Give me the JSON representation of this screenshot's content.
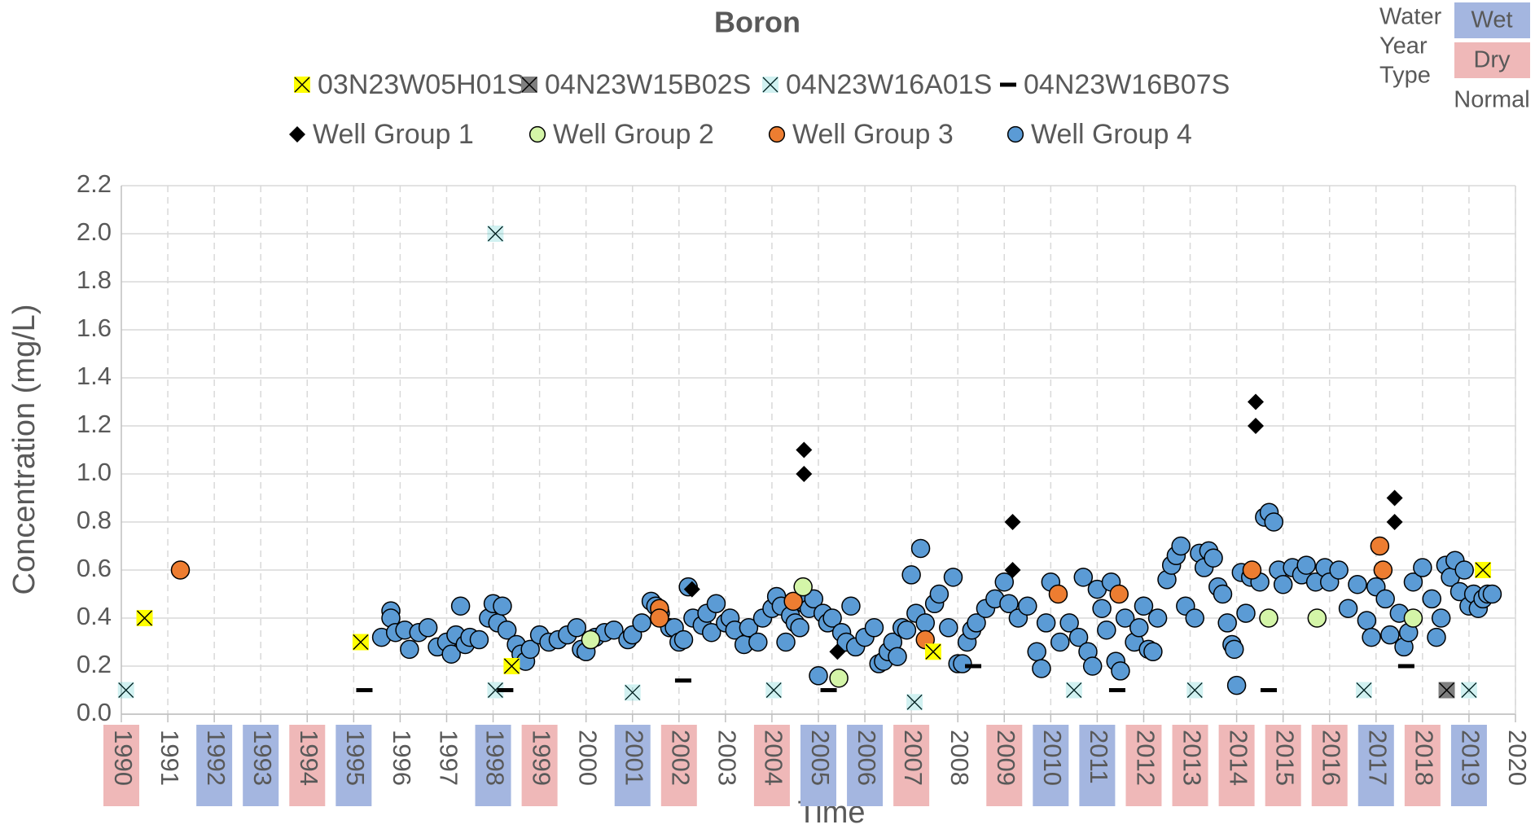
{
  "chart_data": {
    "type": "scatter",
    "title": "Boron",
    "xlabel": "Time",
    "ylabel": "Concentration (mg/L)",
    "xlim": [
      1990,
      2020
    ],
    "xticks": [
      1990,
      1991,
      1992,
      1993,
      1994,
      1995,
      1996,
      1997,
      1998,
      1999,
      2000,
      2001,
      2002,
      2003,
      2004,
      2005,
      2006,
      2007,
      2008,
      2009,
      2010,
      2011,
      2012,
      2013,
      2014,
      2015,
      2016,
      2017,
      2018,
      2019,
      2020
    ],
    "ylim": [
      0,
      2.2
    ],
    "yticks": [
      {
        "value": 0,
        "label": "0.0"
      },
      0.2,
      0.4,
      0.6,
      0.8,
      {
        "value": 1,
        "label": "1.0"
      },
      1.2,
      1.4,
      1.6,
      1.8,
      {
        "value": 2,
        "label": "2.0"
      },
      2.2
    ],
    "grid": true,
    "water_year_type": {
      "title": [
        "Water",
        "Year",
        "Type"
      ],
      "types": [
        {
          "label": "Wet",
          "color": "#a4b6e0",
          "years": [
            1992,
            1993,
            1995,
            1998,
            2001,
            2005,
            2006,
            2010,
            2011,
            2017,
            2019
          ]
        },
        {
          "label": "Dry",
          "color": "#efb8b8",
          "years": [
            1990,
            1994,
            1999,
            2002,
            2004,
            2007,
            2009,
            2012,
            2013,
            2014,
            2015,
            2016,
            2018
          ]
        },
        {
          "label": "Normal",
          "color": "none",
          "years": [
            1991,
            1996,
            1997,
            2000,
            2003,
            2008,
            2020
          ]
        }
      ]
    },
    "series": [
      {
        "name": "03N23W05H01S",
        "marker": "x-box",
        "color": "#ffff00",
        "x": [
          1990.5,
          1995.15,
          1998.4,
          2007.47,
          2019.3
        ],
        "values": [
          0.4,
          0.3,
          0.2,
          0.26,
          0.6
        ]
      },
      {
        "name": "04N23W15B02S",
        "marker": "x-box",
        "color": "#7f7f7f",
        "x": [
          2018.52
        ],
        "values": [
          0.1
        ]
      },
      {
        "name": "04N23W16A01S",
        "marker": "x",
        "color": "#00b0b0",
        "x": [
          1990.1,
          1998.05,
          1998.05,
          2001.0,
          2004.04,
          2007.07,
          2010.5,
          2013.1,
          2016.74,
          2019.0
        ],
        "values": [
          0.1,
          2.0,
          0.1,
          0.09,
          0.1,
          0.05,
          0.1,
          0.1,
          0.1,
          0.1
        ]
      },
      {
        "name": "04N23W16B07S",
        "marker": "dash",
        "color": "#000000",
        "x": [
          1995.23,
          1998.26,
          2002.09,
          2005.22,
          2008.33,
          2011.43,
          2014.69,
          2017.65
        ],
        "values": [
          0.1,
          0.1,
          0.14,
          0.1,
          0.2,
          0.1,
          0.1,
          0.2
        ]
      },
      {
        "name": "Well Group 1",
        "marker": "diamond",
        "color": "#000000",
        "x": [
          2002.28,
          2004.69,
          2004.69,
          2005.41,
          2009.18,
          2009.18,
          2014.41,
          2014.41,
          2017.4,
          2017.4
        ],
        "values": [
          0.52,
          1.1,
          1.0,
          0.26,
          0.8,
          0.6,
          1.3,
          1.2,
          0.9,
          0.8
        ]
      },
      {
        "name": "Well Group 2",
        "marker": "circle",
        "color": "#d4f5a8",
        "x": [
          2000.1,
          2004.67,
          2005.44,
          2014.69,
          2015.73,
          2017.8
        ],
        "values": [
          0.31,
          0.53,
          0.15,
          0.4,
          0.4,
          0.4
        ]
      },
      {
        "name": "Well Group 3",
        "marker": "circle",
        "color": "#ed7d31",
        "x": [
          1991.27,
          2001.58,
          2001.58,
          2004.46,
          2007.3,
          2010.16,
          2011.47,
          2014.33,
          2017.08,
          2017.15
        ],
        "values": [
          0.6,
          0.44,
          0.4,
          0.47,
          0.31,
          0.5,
          0.5,
          0.6,
          0.7,
          0.6
        ]
      },
      {
        "name": "Well Group 4",
        "marker": "circle",
        "color": "#5b9bd5",
        "x": [
          1995.6,
          1995.8,
          1995.8,
          1995.9,
          1996.1,
          1996.2,
          1996.4,
          1996.6,
          1996.8,
          1997.0,
          1997.1,
          1997.2,
          1997.3,
          1997.4,
          1997.5,
          1997.7,
          1997.9,
          1998.0,
          1998.1,
          1998.2,
          1998.3,
          1998.5,
          1998.6,
          1998.7,
          1998.8,
          1999.0,
          1999.2,
          1999.4,
          1999.6,
          1999.8,
          1999.9,
          2000.0,
          2000.2,
          2000.4,
          2000.6,
          2000.9,
          2001.0,
          2001.2,
          2001.4,
          2001.5,
          2001.6,
          2001.8,
          2001.9,
          2002.0,
          2002.1,
          2002.2,
          2002.3,
          2002.5,
          2002.6,
          2002.7,
          2002.8,
          2003.0,
          2003.1,
          2003.2,
          2003.4,
          2003.5,
          2003.7,
          2003.8,
          2004.0,
          2004.1,
          2004.2,
          2004.3,
          2004.4,
          2004.5,
          2004.6,
          2004.7,
          2004.8,
          2004.9,
          2005.0,
          2005.1,
          2005.2,
          2005.3,
          2005.5,
          2005.6,
          2005.7,
          2005.8,
          2006.0,
          2006.2,
          2006.3,
          2006.4,
          2006.5,
          2006.6,
          2006.7,
          2006.8,
          2006.9,
          2007.0,
          2007.1,
          2007.2,
          2007.3,
          2007.5,
          2007.6,
          2007.8,
          2007.9,
          2008.0,
          2008.1,
          2008.2,
          2008.3,
          2008.4,
          2008.6,
          2008.8,
          2009.0,
          2009.1,
          2009.3,
          2009.5,
          2009.7,
          2009.8,
          2009.9,
          2010.0,
          2010.2,
          2010.4,
          2010.6,
          2010.7,
          2010.8,
          2010.9,
          2011.0,
          2011.1,
          2011.2,
          2011.3,
          2011.4,
          2011.5,
          2011.6,
          2011.8,
          2011.9,
          2012.0,
          2012.1,
          2012.2,
          2012.3,
          2012.5,
          2012.6,
          2012.7,
          2012.8,
          2012.9,
          2013.1,
          2013.2,
          2013.3,
          2013.4,
          2013.5,
          2013.6,
          2013.7,
          2013.8,
          2013.9,
          2013.95,
          2014.0,
          2014.1,
          2014.2,
          2014.3,
          2014.5,
          2014.6,
          2014.7,
          2014.8,
          2014.9,
          2015.0,
          2015.2,
          2015.4,
          2015.5,
          2015.7,
          2015.9,
          2016.0,
          2016.2,
          2016.4,
          2016.6,
          2016.8,
          2016.9,
          2017.0,
          2017.2,
          2017.3,
          2017.5,
          2017.6,
          2017.7,
          2017.8,
          2018.0,
          2018.2,
          2018.3,
          2018.4,
          2018.5,
          2018.6,
          2018.7,
          2018.8,
          2018.9,
          2019.0,
          2019.1,
          2019.2,
          2019.3,
          2019.4,
          2019.5
        ],
        "values": [
          0.32,
          0.43,
          0.4,
          0.34,
          0.35,
          0.27,
          0.34,
          0.36,
          0.28,
          0.3,
          0.25,
          0.33,
          0.45,
          0.29,
          0.32,
          0.31,
          0.4,
          0.46,
          0.38,
          0.45,
          0.35,
          0.29,
          0.25,
          0.22,
          0.27,
          0.33,
          0.3,
          0.31,
          0.33,
          0.36,
          0.27,
          0.26,
          0.32,
          0.34,
          0.35,
          0.31,
          0.33,
          0.38,
          0.47,
          0.45,
          0.42,
          0.36,
          0.36,
          0.3,
          0.31,
          0.53,
          0.4,
          0.37,
          0.42,
          0.34,
          0.46,
          0.38,
          0.4,
          0.35,
          0.29,
          0.36,
          0.3,
          0.4,
          0.44,
          0.49,
          0.45,
          0.3,
          0.41,
          0.38,
          0.36,
          0.46,
          0.44,
          0.48,
          0.16,
          0.42,
          0.38,
          0.4,
          0.34,
          0.3,
          0.45,
          0.28,
          0.32,
          0.36,
          0.21,
          0.22,
          0.26,
          0.3,
          0.24,
          0.36,
          0.35,
          0.58,
          0.42,
          0.69,
          0.38,
          0.46,
          0.5,
          0.36,
          0.57,
          0.21,
          0.21,
          0.3,
          0.35,
          0.38,
          0.44,
          0.48,
          0.55,
          0.46,
          0.4,
          0.45,
          0.26,
          0.19,
          0.38,
          0.55,
          0.3,
          0.38,
          0.32,
          0.57,
          0.26,
          0.2,
          0.52,
          0.44,
          0.35,
          0.55,
          0.22,
          0.18,
          0.4,
          0.3,
          0.36,
          0.45,
          0.27,
          0.26,
          0.4,
          0.56,
          0.62,
          0.66,
          0.7,
          0.45,
          0.4,
          0.67,
          0.61,
          0.68,
          0.65,
          0.53,
          0.5,
          0.38,
          0.29,
          0.27,
          0.12,
          0.59,
          0.42,
          0.57,
          0.55,
          0.82,
          0.84,
          0.8,
          0.6,
          0.54,
          0.61,
          0.58,
          0.62,
          0.55,
          0.61,
          0.55,
          0.6,
          0.44,
          0.54,
          0.39,
          0.32,
          0.53,
          0.48,
          0.33,
          0.42,
          0.28,
          0.34,
          0.55,
          0.61,
          0.48,
          0.32,
          0.4,
          0.62,
          0.57,
          0.64,
          0.51,
          0.6,
          0.45,
          0.5,
          0.44,
          0.48,
          0.5,
          0.5
        ]
      }
    ]
  }
}
